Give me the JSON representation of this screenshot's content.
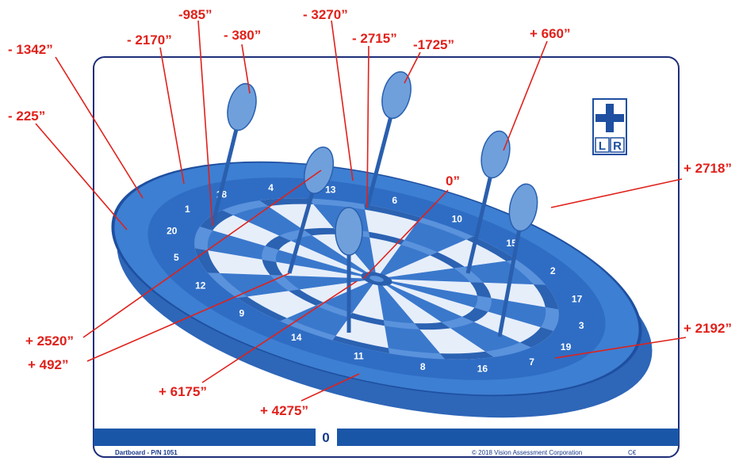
{
  "callouts": [
    "- 1342”",
    "- 2170”",
    "-985”",
    "- 380”",
    "- 3270”",
    "- 2715”",
    "-1725”",
    "+ 660”",
    "- 225”",
    "+ 2718”",
    "0”",
    "+ 2520”",
    "+ 492”",
    "+ 2192”",
    "+ 6175”",
    "+ 4275”"
  ],
  "board_numbers": [
    "20",
    "1",
    "18",
    "4",
    "13",
    "6",
    "10",
    "15",
    "2",
    "17",
    "3",
    "19",
    "7",
    "16",
    "8",
    "11",
    "14",
    "9",
    "12",
    "5"
  ],
  "bar": {
    "value": "0"
  },
  "icon": {
    "left": "L",
    "right": "R"
  },
  "footer": {
    "left": "Dartboard - P/N 1051",
    "right": "© 2018 Vision Assessment Corporation",
    "mark": "C€"
  }
}
